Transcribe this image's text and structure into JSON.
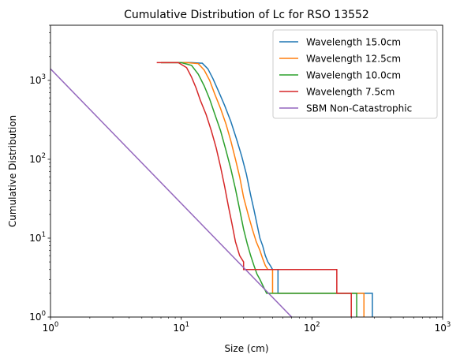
{
  "chart_data": {
    "type": "line",
    "title": "Cumulative Distribution of Lc for RSO 13552",
    "xlabel": "Size (cm)",
    "ylabel": "Cumulative Distribution",
    "xscale": "log",
    "yscale": "log",
    "xlim": [
      1,
      1000
    ],
    "ylim": [
      1,
      5000
    ],
    "grid": false,
    "legend_position": "top-right",
    "x_ticks": [
      {
        "value": 1,
        "base": "10",
        "exp": "0"
      },
      {
        "value": 10,
        "base": "10",
        "exp": "1"
      },
      {
        "value": 100,
        "base": "10",
        "exp": "2"
      },
      {
        "value": 1000,
        "base": "10",
        "exp": "3"
      }
    ],
    "y_ticks": [
      {
        "value": 1,
        "base": "10",
        "exp": "0"
      },
      {
        "value": 10,
        "base": "10",
        "exp": "1"
      },
      {
        "value": 100,
        "base": "10",
        "exp": "2"
      },
      {
        "value": 1000,
        "base": "10",
        "exp": "3"
      }
    ],
    "series": [
      {
        "name": "Wavelength 15.0cm",
        "color": "#1f77b4",
        "x": [
          7.0,
          12.0,
          14.5,
          16.0,
          17.5,
          19.5,
          21.5,
          24.0,
          26.5,
          29.0,
          31.5,
          34.0,
          36.0,
          38.0,
          40.0,
          42.0,
          44.0,
          46.0,
          48.0,
          50.0,
          55.0,
          55.0,
          290.0,
          290.0
        ],
        "y": [
          1680,
          1680,
          1650,
          1400,
          1050,
          700,
          480,
          300,
          180,
          110,
          65,
          35,
          23,
          15,
          10,
          8,
          6,
          5,
          4.5,
          4,
          4,
          2,
          2,
          1
        ]
      },
      {
        "name": "Wavelength 12.5cm",
        "color": "#ff7f0e",
        "x": [
          7.0,
          11.0,
          13.5,
          15.0,
          16.5,
          18.0,
          20.0,
          22.0,
          24.0,
          26.0,
          28.0,
          30.0,
          32.5,
          35.0,
          37.5,
          40.0,
          42.0,
          44.0,
          46.0,
          50.0,
          50.0,
          250.0,
          250.0
        ],
        "y": [
          1680,
          1680,
          1630,
          1350,
          1000,
          680,
          440,
          280,
          170,
          100,
          60,
          33,
          20,
          13,
          9,
          7,
          5.5,
          4.5,
          4,
          4,
          2,
          2,
          1
        ]
      },
      {
        "name": "Wavelength 10.0cm",
        "color": "#2ca02c",
        "x": [
          7.0,
          10.0,
          12.0,
          13.5,
          15.0,
          16.5,
          18.0,
          20.0,
          22.0,
          24.0,
          26.0,
          28.0,
          30.0,
          32.0,
          34.0,
          36.0,
          38.0,
          40.0,
          45.0,
          45.0,
          220.0,
          220.0
        ],
        "y": [
          1680,
          1680,
          1550,
          1200,
          850,
          580,
          380,
          230,
          130,
          75,
          42,
          23,
          13,
          8.5,
          6,
          4.5,
          3.5,
          3,
          2,
          2,
          2,
          1
        ]
      },
      {
        "name": "Wavelength 7.5cm",
        "color": "#d62728",
        "x": [
          6.5,
          9.5,
          11.0,
          12.0,
          13.0,
          14.0,
          15.5,
          17.0,
          18.5,
          20.0,
          21.5,
          23.0,
          24.5,
          26.0,
          28.0,
          30.0,
          30.0,
          155.0,
          155.0,
          200.0,
          200.0
        ],
        "y": [
          1680,
          1680,
          1450,
          1100,
          800,
          560,
          370,
          230,
          140,
          80,
          45,
          25,
          15,
          9,
          6,
          5,
          4,
          4,
          2,
          2,
          1
        ]
      },
      {
        "name": "SBM Non-Catastrophic",
        "color": "#9467bd",
        "x": [
          1,
          70
        ],
        "y": [
          1400,
          1
        ]
      }
    ]
  }
}
